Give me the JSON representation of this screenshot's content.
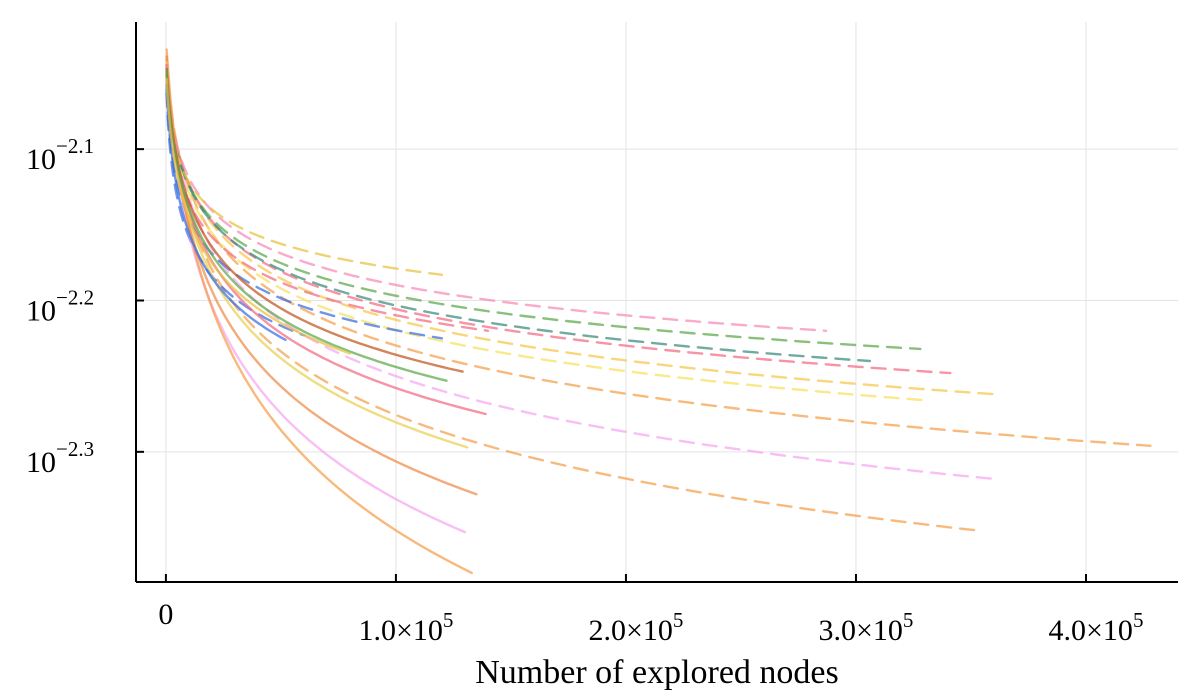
{
  "chart_data": {
    "type": "line",
    "title": "",
    "xlabel": "Number of explored nodes",
    "ylabel": "",
    "xlim": [
      -13000,
      440000
    ],
    "ylim": [
      -2.386,
      -2.016
    ],
    "yscale": "log10",
    "grid": true,
    "legend": "none",
    "x_ticks": [
      {
        "value": 0,
        "label": "0"
      },
      {
        "value": 100000,
        "label": "1.0×10",
        "exp": "5"
      },
      {
        "value": 200000,
        "label": "2.0×10",
        "exp": "5"
      },
      {
        "value": 300000,
        "label": "3.0×10",
        "exp": "5"
      },
      {
        "value": 400000,
        "label": "4.0×10",
        "exp": "5"
      }
    ],
    "y_ticks": [
      {
        "value": -2.1,
        "label": "10",
        "exp": "−2.1"
      },
      {
        "value": -2.2,
        "label": "10",
        "exp": "−2.2"
      },
      {
        "value": -2.3,
        "label": "10",
        "exp": "−2.3"
      }
    ],
    "series": [
      {
        "color": "#f5a04a",
        "dash": true,
        "end_x": 428000,
        "end_y": -2.296,
        "start_y": -2.032,
        "k": 0.85
      },
      {
        "color": "#f5c64a",
        "dash": true,
        "end_x": 361000,
        "end_y": -2.262,
        "start_y": -2.035,
        "k": 0.8
      },
      {
        "color": "#f7e060",
        "dash": true,
        "end_x": 331000,
        "end_y": -2.266,
        "start_y": -2.04,
        "k": 0.8
      },
      {
        "color": "#f7a6f0",
        "dash": true,
        "end_x": 361000,
        "end_y": -2.318,
        "start_y": -2.035,
        "k": 0.9
      },
      {
        "color": "#f5a04a",
        "dash": true,
        "end_x": 353000,
        "end_y": -2.352,
        "start_y": -2.03,
        "k": 0.9
      },
      {
        "color": "#f26b84",
        "dash": true,
        "end_x": 341000,
        "end_y": -2.248,
        "start_y": -2.034,
        "k": 0.75
      },
      {
        "color": "#5aa84a",
        "dash": true,
        "end_x": 328000,
        "end_y": -2.232,
        "start_y": -2.038,
        "k": 0.7
      },
      {
        "color": "#3a8a7a",
        "dash": true,
        "end_x": 306000,
        "end_y": -2.24,
        "start_y": -2.04,
        "k": 0.75
      },
      {
        "color": "#f78ab8",
        "dash": true,
        "end_x": 287000,
        "end_y": -2.22,
        "start_y": -2.036,
        "k": 0.7
      },
      {
        "color": "#e8c040",
        "dash": true,
        "end_x": 120000,
        "end_y": -2.183,
        "start_y": -2.04,
        "k": 0.6
      },
      {
        "color": "#f26b84",
        "dash": true,
        "end_x": 140000,
        "end_y": -2.22,
        "start_y": -2.038,
        "k": 0.65
      },
      {
        "color": "#3a6ee0",
        "dash": true,
        "end_x": 60000,
        "end_y": -2.223,
        "start_y": -2.04,
        "k": 0.6
      },
      {
        "color": "#3a6ee0",
        "dash": true,
        "end_x": 120000,
        "end_y": -2.225,
        "start_y": -2.04,
        "k": 0.6
      },
      {
        "color": "#f7a6f0",
        "dash": false,
        "end_x": 130000,
        "end_y": -2.353,
        "start_y": -2.03,
        "k": 1.0
      },
      {
        "color": "#f5a04a",
        "dash": false,
        "end_x": 133000,
        "end_y": -2.38,
        "start_y": -2.028,
        "k": 1.1
      },
      {
        "color": "#f08a4a",
        "dash": false,
        "end_x": 135000,
        "end_y": -2.328,
        "start_y": -2.03,
        "k": 0.95
      },
      {
        "color": "#e8d050",
        "dash": false,
        "end_x": 131000,
        "end_y": -2.297,
        "start_y": -2.033,
        "k": 0.9
      },
      {
        "color": "#f26b84",
        "dash": false,
        "end_x": 139000,
        "end_y": -2.275,
        "start_y": -2.034,
        "k": 0.85
      },
      {
        "color": "#c0541a",
        "dash": false,
        "end_x": 129000,
        "end_y": -2.247,
        "start_y": -2.036,
        "k": 0.8
      },
      {
        "color": "#5aa84a",
        "dash": false,
        "end_x": 122000,
        "end_y": -2.253,
        "start_y": -2.036,
        "k": 0.8
      },
      {
        "color": "#3a6ee0",
        "dash": false,
        "end_x": 52000,
        "end_y": -2.226,
        "start_y": -2.04,
        "k": 0.7
      },
      {
        "color": "#e8c040",
        "dash": false,
        "end_x": 80000,
        "end_y": -2.235,
        "start_y": -2.04,
        "k": 0.75
      }
    ]
  }
}
